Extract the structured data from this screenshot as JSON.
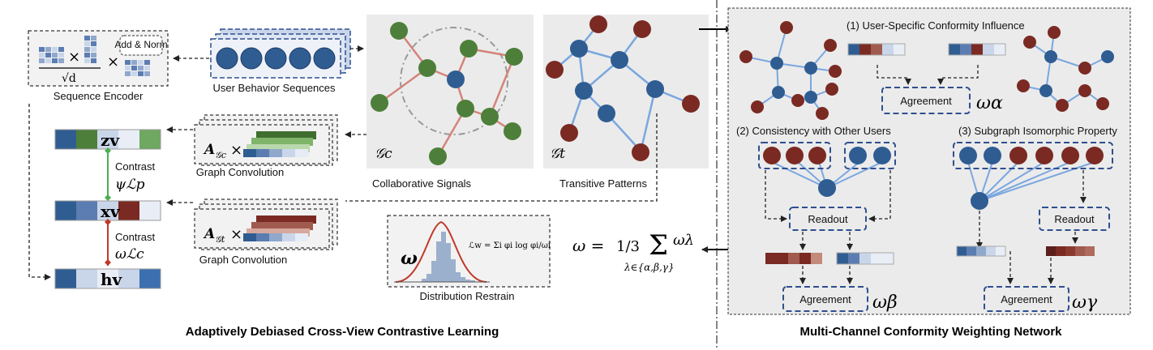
{
  "colors": {
    "dark_blue": "#2f5d92",
    "mid_blue": "#5b7db1",
    "light_blue": "#c9d6ea",
    "dark_red": "#7a2a22",
    "mid_red": "#a05a4e",
    "green": "#4e7f3a",
    "green_edge": "#4caf50",
    "red_edge": "#c0392b",
    "gray_panel": "#ebebeb"
  },
  "left": {
    "sequence_encoder": {
      "label": "Sequence Encoder",
      "add_norm": "Add & Norm",
      "times": "×",
      "sqrt_d": "√d"
    },
    "user_behavior": {
      "label": "User Behavior Sequences"
    },
    "graph_conv_top": {
      "label": "Graph Convolution",
      "adj": "A",
      "sub": "𝒢c",
      "times": "×"
    },
    "graph_conv_bottom": {
      "label": "Graph Convolution",
      "adj": "A",
      "sub": "𝒢t",
      "times": "×"
    },
    "collab": {
      "label": "Collaborative Signals",
      "graph_name": "𝒢c"
    },
    "transitive": {
      "label": "Transitive Patterns",
      "graph_name": "𝒢t"
    },
    "z_v": "zv",
    "x_v": "xv",
    "h_v": "hv",
    "contrast_top": {
      "label": "Contrast",
      "loss": "ψℒp"
    },
    "contrast_bottom": {
      "label": "Contrast",
      "loss": "ωℒc"
    },
    "distribution": {
      "label": "Distribution Restrain",
      "omega": "ω",
      "formula": "ℒw = Σi φi log φi/ωi"
    },
    "formula": {
      "lhs": "ω =",
      "frac": "1/3",
      "sum": "Σ",
      "sub": "λ∈{α,β,γ}",
      "term": "ωλ"
    },
    "title": "Adaptively Debiased Cross-View Contrastive Learning"
  },
  "right": {
    "channel1": {
      "label": "(1) User-Specific Conformity Influence",
      "agreement": "Agreement",
      "weight": "ωα"
    },
    "channel2": {
      "label": "(2) Consistency with Other Users",
      "readout": "Readout",
      "agreement": "Agreement",
      "weight": "ωβ"
    },
    "channel3": {
      "label": "(3) Subgraph Isomorphic Property",
      "readout": "Readout",
      "agreement": "Agreement",
      "weight": "ωγ"
    },
    "title": "Multi-Channel Conformity Weighting Network"
  }
}
